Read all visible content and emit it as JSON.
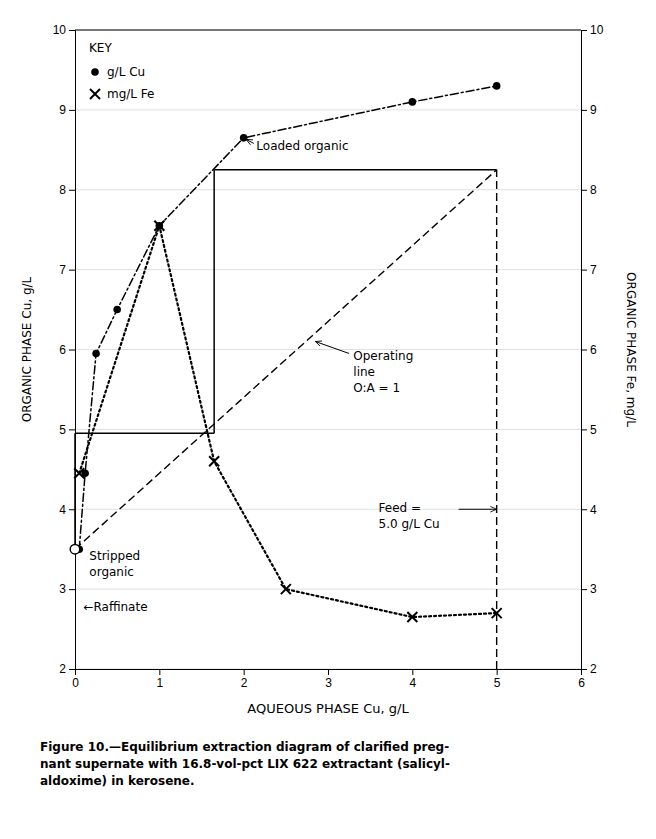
{
  "chart_data": {
    "type": "line",
    "xlabel": "AQUEOUS PHASE Cu, g/L",
    "ylabel": "ORGANIC PHASE Cu, g/L",
    "y2label": "ORGANIC PHASE Fe, mg/L",
    "xlim": [
      0,
      6
    ],
    "ylim": [
      2,
      10
    ],
    "y2lim": [
      2,
      10
    ],
    "xticks": [
      0,
      1,
      2,
      3,
      4,
      5,
      6
    ],
    "yticks": [
      2,
      3,
      4,
      5,
      6,
      7,
      8,
      9,
      10
    ],
    "y2ticks": [
      2,
      3,
      4,
      5,
      6,
      7,
      8,
      9,
      10
    ],
    "grid": "y",
    "legend": "upper left",
    "legend_title": "KEY",
    "series": [
      {
        "x": [
          0.0,
          5.0
        ],
        "values": [
          3.5,
          8.25
        ],
        "line_style": "dashed",
        "color": "#000000"
      },
      {
        "name": "g/L Cu",
        "x": [
          0.05,
          0.12,
          0.25,
          0.5,
          1.0,
          2.0,
          4.0,
          5.0
        ],
        "values": [
          3.5,
          4.45,
          5.95,
          6.5,
          7.55,
          8.65,
          9.1,
          9.3
        ],
        "line_style": "dashdot",
        "marker": "circle",
        "color": "#000000"
      },
      {
        "name": "mg/L Fe",
        "axis": "y2",
        "x": [
          0.05,
          1.0,
          1.65,
          2.5,
          4.0,
          5.0
        ],
        "values": [
          4.45,
          7.55,
          4.6,
          3.0,
          2.65,
          2.7
        ],
        "line_style": "dotted",
        "marker": "x",
        "color": "#000000"
      },
      {
        "x": [
          0.0,
          0.0
        ],
        "values": [
          3.5,
          4.95
        ],
        "line_style": "solid",
        "color": "#000000"
      },
      {
        "x": [
          0.0,
          1.65
        ],
        "values": [
          4.95,
          4.95
        ],
        "line_style": "solid",
        "color": "#000000"
      },
      {
        "x": [
          1.65,
          1.65
        ],
        "values": [
          4.95,
          8.25
        ],
        "line_style": "solid",
        "color": "#000000"
      },
      {
        "x": [
          1.65,
          5.0
        ],
        "values": [
          8.25,
          8.25
        ],
        "line_style": "solid",
        "color": "#000000"
      },
      {
        "x": [
          5.0,
          5.0
        ],
        "values": [
          2.0,
          8.25
        ],
        "line_style": "dashed",
        "color": "#000000"
      },
      {
        "type": "scatter",
        "x": [
          0.0
        ],
        "values": [
          3.5
        ],
        "marker": "circle_open",
        "color": "#000000"
      }
    ],
    "annotations": [
      {
        "text": "Loaded organic",
        "x": 2.15,
        "y": 8.55,
        "arrow": [
          [
            2.12,
            8.58
          ],
          [
            2.03,
            8.63
          ]
        ]
      },
      {
        "text": "Operating\nline\nO:A = 1",
        "x": 3.3,
        "y": 6.0,
        "arrow": [
          [
            3.25,
            5.95
          ],
          [
            2.85,
            6.1
          ]
        ]
      },
      {
        "text": "Stripped\norganic",
        "x": 0.17,
        "y": 3.5
      },
      {
        "text": "←Raffinate",
        "x": 0.1,
        "y": 2.78
      },
      {
        "text": "Feed =\n5.0 g/L Cu",
        "x": 3.6,
        "y": 4.1,
        "arrow": [
          [
            4.55,
            4.0
          ],
          [
            5.0,
            4.0
          ]
        ]
      }
    ],
    "caption": [
      "Figure 10.—Equilibrium extraction diagram of clarified preg-",
      "nant supernate with 16.8-vol-pct LIX 622 extractant (salicyl-",
      "aldoxime) in kerosene."
    ]
  }
}
